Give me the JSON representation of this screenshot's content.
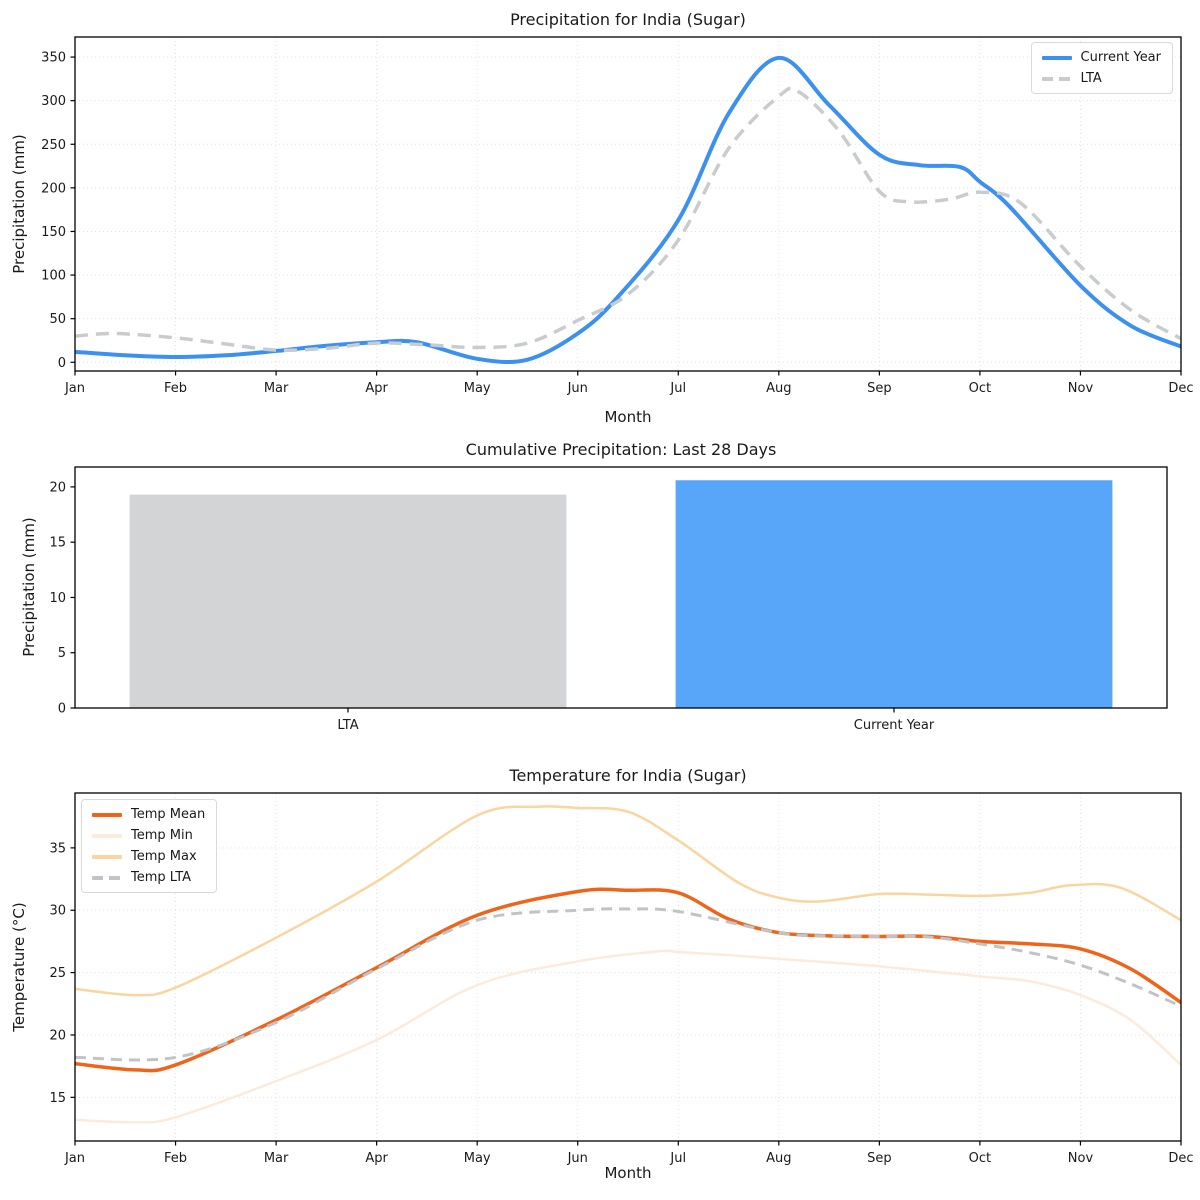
{
  "figure_background": "#ffffff",
  "chart_data": [
    {
      "type": "line",
      "title": "Precipitation for India (Sugar)",
      "xlabel": "Month",
      "ylabel": "Precipitation (mm)",
      "x_tick_labels": [
        "Jan",
        "Feb",
        "Mar",
        "Apr",
        "May",
        "Jun",
        "Jul",
        "Aug",
        "Sep",
        "Oct",
        "Nov",
        "Dec"
      ],
      "ylim": [
        -10,
        373
      ],
      "yticks": [
        0,
        50,
        100,
        150,
        200,
        250,
        300,
        350
      ],
      "grid": "dotted",
      "legend_position": "top-right",
      "series": [
        {
          "name": "Current Year",
          "color": "#3B90F0",
          "style": "solid",
          "width": 4,
          "x": [
            0,
            0.5,
            1,
            1.5,
            2,
            2.5,
            3,
            3.4,
            4,
            4.5,
            5,
            5.4,
            6,
            6.5,
            7,
            7.5,
            8,
            8.4,
            8.8,
            9,
            9.3,
            10,
            10.5,
            11
          ],
          "y": [
            12,
            8,
            6,
            8,
            13,
            19,
            23,
            23,
            4,
            3,
            33,
            75,
            163,
            285,
            349,
            295,
            238,
            226,
            224,
            207,
            178,
            88,
            42,
            18
          ]
        },
        {
          "name": "LTA",
          "color": "#C9CCCF",
          "style": "dashed",
          "width": 3.5,
          "x": [
            0,
            0.4,
            1,
            1.5,
            2,
            2.5,
            3,
            3.5,
            4,
            4.5,
            5,
            5.5,
            6,
            6.5,
            7,
            7.2,
            7.6,
            8,
            8.3,
            8.7,
            9,
            9.4,
            10,
            10.5,
            11
          ],
          "y": [
            30,
            33,
            28,
            21,
            14,
            16,
            22,
            20,
            17,
            22,
            48,
            78,
            140,
            245,
            305,
            310,
            265,
            196,
            184,
            187,
            195,
            183,
            110,
            60,
            27
          ]
        }
      ]
    },
    {
      "type": "bar",
      "title": "Cumulative Precipitation: Last 28 Days",
      "ylabel": "Precipitation (mm)",
      "categories": [
        "LTA",
        "Current Year"
      ],
      "values": [
        19.3,
        20.6
      ],
      "bar_colors": [
        "#D2D4D6",
        "#58A6F9"
      ],
      "ylim": [
        0,
        21.8
      ],
      "yticks": [
        0,
        5,
        10,
        15,
        20
      ],
      "grid": "none"
    },
    {
      "type": "line",
      "title": "Temperature for India (Sugar)",
      "xlabel": "Month",
      "ylabel": "Temperature (°C)",
      "x_tick_labels": [
        "Jan",
        "Feb",
        "Mar",
        "Apr",
        "May",
        "Jun",
        "Jul",
        "Aug",
        "Sep",
        "Oct",
        "Nov",
        "Dec"
      ],
      "ylim": [
        11.5,
        39.4
      ],
      "yticks": [
        15,
        20,
        25,
        30,
        35
      ],
      "grid": "dotted",
      "legend_position": "top-left",
      "series": [
        {
          "name": "Temp Mean",
          "color": "#EF6418",
          "style": "solid",
          "width": 3.5,
          "x": [
            0,
            0.6,
            1,
            2,
            3,
            4,
            5,
            5.5,
            6,
            6.5,
            7,
            7.5,
            8,
            8.5,
            9,
            9.5,
            10,
            10.5,
            11
          ],
          "y": [
            17.7,
            17.2,
            17.6,
            21.2,
            25.4,
            29.6,
            31.5,
            31.6,
            31.4,
            29.3,
            28.2,
            27.95,
            27.9,
            27.9,
            27.5,
            27.3,
            26.9,
            25.3,
            22.6
          ]
        },
        {
          "name": "Temp Min",
          "color": "#FCEBDA",
          "style": "solid",
          "width": 2.5,
          "x": [
            0,
            0.6,
            1,
            2,
            3,
            4,
            5,
            5.8,
            6,
            6.5,
            7,
            8,
            9,
            9.5,
            10,
            10.5,
            11
          ],
          "y": [
            13.2,
            13.0,
            13.4,
            16.3,
            19.6,
            24.0,
            25.9,
            26.7,
            26.65,
            26.4,
            26.1,
            25.5,
            24.7,
            24.3,
            23.2,
            21.2,
            17.6
          ]
        },
        {
          "name": "Temp Max",
          "color": "#FAD5A0",
          "style": "solid",
          "width": 2.5,
          "x": [
            0,
            0.6,
            1,
            2,
            3,
            4,
            4.6,
            5,
            5.5,
            6,
            6.6,
            7,
            7.4,
            8,
            8.5,
            9,
            9.5,
            9.9,
            10.4,
            11
          ],
          "y": [
            23.7,
            23.2,
            23.8,
            27.8,
            32.3,
            37.6,
            38.3,
            38.2,
            37.9,
            35.6,
            32.2,
            31.0,
            30.7,
            31.3,
            31.25,
            31.15,
            31.4,
            32.0,
            31.8,
            29.2
          ]
        },
        {
          "name": "Temp LTA",
          "color": "#C0C4C8",
          "style": "dashed",
          "width": 3,
          "x": [
            0,
            1,
            2,
            3,
            4,
            5,
            5.5,
            6,
            7,
            7.5,
            8,
            8.5,
            9,
            9.5,
            10,
            10.5,
            11
          ],
          "y": [
            18.2,
            18.2,
            21.0,
            25.3,
            29.2,
            30.0,
            30.1,
            29.9,
            28.2,
            27.95,
            27.9,
            27.85,
            27.3,
            26.6,
            25.6,
            24.1,
            22.3
          ]
        }
      ]
    }
  ]
}
